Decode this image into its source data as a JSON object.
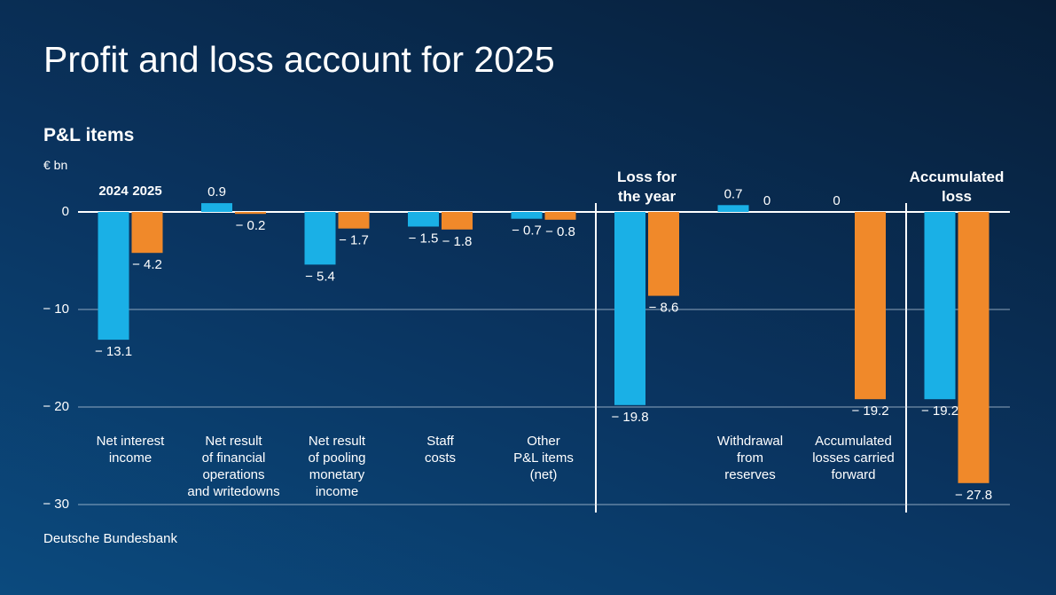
{
  "chart_data": {
    "type": "bar",
    "title": "Profit and loss account for 2025",
    "subtitle": "P&L items",
    "y_label": "€ bn",
    "source": "Deutsche Bundesbank",
    "categories": [
      "Net interest\nincome",
      "Net result\nof financial\noperations\nand writedowns",
      "Net result\nof pooling\nmonetary\nincome",
      "Staff\ncosts",
      "Other\nP&L items\n(net)",
      "Loss for\nthe year",
      "Withdrawal\nfrom\nreserves",
      "Accumulated\nlosses carried\nforward",
      "Accumulated\nloss"
    ],
    "series": [
      {
        "name": "2024",
        "color": "#1ab0e6",
        "values": [
          -13.1,
          0.9,
          -5.4,
          -1.5,
          -0.7,
          -19.8,
          0.7,
          0,
          -19.2
        ],
        "value_labels": [
          "− 13.1",
          "0.9",
          "− 5.4",
          "− 1.5",
          "− 0.7",
          "− 19.8",
          "0.7",
          "0",
          "− 19.2"
        ]
      },
      {
        "name": "2025",
        "color": "#f0892a",
        "values": [
          -4.2,
          -0.2,
          -1.7,
          -1.8,
          -0.8,
          -8.6,
          0,
          -19.2,
          -27.8
        ],
        "value_labels": [
          "− 4.2",
          "− 0.2",
          "− 1.7",
          "− 1.8",
          "− 0.8",
          "− 8.6",
          "0",
          "− 19.2",
          "− 27.8"
        ]
      }
    ],
    "ylim": [
      -30,
      3
    ],
    "yticks": [
      {
        "value": -30,
        "label": "− 30"
      },
      {
        "value": -20,
        "label": "− 20"
      },
      {
        "value": -10,
        "label": "− 10"
      },
      0
    ],
    "grid": true
  }
}
